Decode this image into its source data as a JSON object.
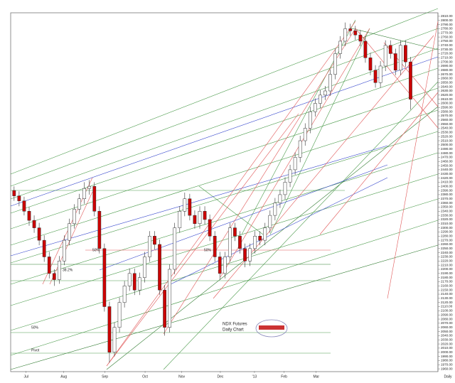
{
  "chart_data": {
    "type": "candlestick",
    "title": "NDX  Futures",
    "subtitle": "Daily Chart",
    "x": [
      0,
      1,
      2,
      3,
      4,
      5,
      6,
      7,
      8,
      9,
      10,
      11,
      12,
      13,
      14,
      15,
      16,
      17,
      18,
      19,
      20,
      21,
      22,
      23,
      24,
      25,
      26,
      27,
      28,
      29,
      30,
      31,
      32,
      33,
      34,
      35,
      36,
      37,
      38,
      39,
      40,
      41,
      42,
      43,
      44,
      45,
      46,
      47,
      48,
      49,
      50,
      51,
      52,
      53,
      54,
      55,
      56,
      57,
      58,
      59,
      60,
      61,
      62,
      63,
      64,
      65,
      66,
      67,
      68,
      69,
      70,
      71,
      72,
      73,
      74,
      75,
      76,
      77,
      78,
      79
    ],
    "open": [
      2390,
      2377,
      2365,
      2340,
      2318,
      2300,
      2270,
      2230,
      2190,
      2175,
      2220,
      2270,
      2310,
      2345,
      2370,
      2395,
      2400,
      2340,
      2250,
      2110,
      2000,
      2060,
      2120,
      2160,
      2190,
      2150,
      2180,
      2230,
      2280,
      2260,
      2150,
      2060,
      2200,
      2300,
      2340,
      2370,
      2330,
      2310,
      2340,
      2320,
      2280,
      2230,
      2190,
      2230,
      2300,
      2280,
      2250,
      2220,
      2250,
      2280,
      2270,
      2300,
      2330,
      2360,
      2380,
      2410,
      2440,
      2470,
      2510,
      2540,
      2580,
      2600,
      2620,
      2630,
      2670,
      2720,
      2750,
      2780,
      2775,
      2765,
      2750,
      2710,
      2680,
      2650,
      2690,
      2740,
      2720,
      2680,
      2740,
      2700
    ],
    "high": [
      2400,
      2388,
      2375,
      2350,
      2330,
      2312,
      2282,
      2242,
      2200,
      2232,
      2282,
      2322,
      2357,
      2382,
      2410,
      2415,
      2410,
      2352,
      2262,
      2122,
      2072,
      2132,
      2172,
      2202,
      2202,
      2192,
      2242,
      2292,
      2292,
      2272,
      2162,
      2212,
      2312,
      2352,
      2385,
      2382,
      2342,
      2352,
      2352,
      2332,
      2292,
      2242,
      2242,
      2312,
      2312,
      2292,
      2262,
      2262,
      2292,
      2292,
      2312,
      2342,
      2372,
      2392,
      2422,
      2452,
      2482,
      2522,
      2552,
      2592,
      2612,
      2632,
      2642,
      2682,
      2732,
      2762,
      2795,
      2792,
      2787,
      2777,
      2762,
      2722,
      2692,
      2702,
      2752,
      2752,
      2732,
      2752,
      2752,
      2712
    ],
    "low": [
      2365,
      2352,
      2330,
      2305,
      2288,
      2258,
      2218,
      2178,
      2160,
      2165,
      2210,
      2258,
      2298,
      2333,
      2358,
      2380,
      2328,
      2238,
      2098,
      1975,
      1990,
      2048,
      2108,
      2148,
      2138,
      2138,
      2168,
      2218,
      2248,
      2138,
      2040,
      2048,
      2188,
      2288,
      2328,
      2318,
      2298,
      2298,
      2308,
      2268,
      2218,
      2175,
      2178,
      2218,
      2268,
      2238,
      2205,
      2208,
      2238,
      2258,
      2258,
      2288,
      2318,
      2348,
      2368,
      2398,
      2428,
      2458,
      2498,
      2528,
      2568,
      2588,
      2608,
      2618,
      2658,
      2708,
      2738,
      2763,
      2753,
      2738,
      2698,
      2668,
      2638,
      2638,
      2678,
      2708,
      2668,
      2668,
      2688,
      2585
    ],
    "close": [
      2377,
      2365,
      2340,
      2318,
      2300,
      2270,
      2230,
      2190,
      2175,
      2220,
      2270,
      2310,
      2345,
      2370,
      2395,
      2400,
      2340,
      2250,
      2110,
      2000,
      2060,
      2120,
      2160,
      2190,
      2150,
      2180,
      2230,
      2280,
      2260,
      2150,
      2060,
      2200,
      2300,
      2340,
      2370,
      2330,
      2310,
      2340,
      2320,
      2280,
      2230,
      2190,
      2230,
      2300,
      2280,
      2250,
      2220,
      2250,
      2280,
      2270,
      2300,
      2330,
      2360,
      2380,
      2410,
      2440,
      2470,
      2510,
      2540,
      2580,
      2600,
      2620,
      2630,
      2670,
      2720,
      2750,
      2780,
      2775,
      2765,
      2750,
      2710,
      2680,
      2650,
      2690,
      2740,
      2720,
      2680,
      2740,
      2700,
      2610
    ],
    "up_color": "#ffffff",
    "down_color": "#cc0000",
    "xlim": [
      -0.4,
      84.6
    ],
    "xticks": [
      {
        "value": 2.4,
        "label": "Jul"
      },
      {
        "value": 9.9,
        "label": "Aug"
      },
      {
        "value": 18.1,
        "label": "Sep"
      },
      {
        "value": 26.1,
        "label": "Oct"
      },
      {
        "value": 33.4,
        "label": "Nov"
      },
      {
        "value": 41.1,
        "label": "Dec"
      },
      {
        "value": 47.9,
        "label": "'13"
      },
      {
        "value": 53.8,
        "label": "Feb"
      },
      {
        "value": 60.2,
        "label": "Mar"
      }
    ],
    "x_axis_label": "Daily",
    "ylim": [
      1955,
      2815
    ],
    "yticks": [
      {
        "value": 1960,
        "label": "1960.00"
      },
      {
        "value": 1970,
        "label": "1970.00"
      },
      {
        "value": 1980,
        "label": "1980.00"
      },
      {
        "value": 1990,
        "label": "1990.00"
      },
      {
        "value": 2000,
        "label": "2000.00"
      },
      {
        "value": 2010,
        "label": "2010.00"
      },
      {
        "value": 2020,
        "label": "2020.00"
      },
      {
        "value": 2030,
        "label": "2030.00"
      },
      {
        "value": 2040,
        "label": "2040.00"
      },
      {
        "value": 2050,
        "label": "2050.00"
      },
      {
        "value": 2060,
        "label": "2060.00"
      },
      {
        "value": 2070,
        "label": "2070.00"
      },
      {
        "value": 2080,
        "label": "2080.00"
      },
      {
        "value": 2090,
        "label": "2090.00"
      },
      {
        "value": 2100,
        "label": "2100.00"
      },
      {
        "value": 2110,
        "label": "2110.00"
      },
      {
        "value": 2120,
        "label": "2120.00"
      },
      {
        "value": 2130,
        "label": "2130.00"
      },
      {
        "value": 2140,
        "label": "2140.00"
      },
      {
        "value": 2150,
        "label": "2150.00"
      },
      {
        "value": 2160,
        "label": "2160.00"
      },
      {
        "value": 2170,
        "label": "2170.00"
      },
      {
        "value": 2180,
        "label": "2180.00"
      },
      {
        "value": 2190,
        "label": "2190.00"
      },
      {
        "value": 2200,
        "label": "2200.00"
      },
      {
        "value": 2210,
        "label": "2210.00"
      },
      {
        "value": 2220,
        "label": "2220.00"
      },
      {
        "value": 2230,
        "label": "2230.00"
      },
      {
        "value": 2240,
        "label": "2240.00"
      },
      {
        "value": 2250,
        "label": "2250.00"
      },
      {
        "value": 2260,
        "label": "2260.00"
      },
      {
        "value": 2270,
        "label": "2270.00"
      },
      {
        "value": 2280,
        "label": "2280.00"
      },
      {
        "value": 2290,
        "label": "2290.00"
      },
      {
        "value": 2300,
        "label": "2300.00"
      },
      {
        "value": 2310,
        "label": "2310.00"
      },
      {
        "value": 2320,
        "label": "2320.00"
      },
      {
        "value": 2330,
        "label": "2330.00"
      },
      {
        "value": 2340,
        "label": "2340.00"
      },
      {
        "value": 2350,
        "label": "2350.00"
      },
      {
        "value": 2360,
        "label": "2360.00"
      },
      {
        "value": 2370,
        "label": "2370.00"
      },
      {
        "value": 2380,
        "label": "2380.00"
      },
      {
        "value": 2390,
        "label": "2390.00"
      },
      {
        "value": 2400,
        "label": "2400.00"
      },
      {
        "value": 2410,
        "label": "2410.00"
      },
      {
        "value": 2420,
        "label": "2420.00"
      },
      {
        "value": 2430,
        "label": "2430.00"
      },
      {
        "value": 2440,
        "label": "2440.00"
      },
      {
        "value": 2450,
        "label": "2450.00"
      },
      {
        "value": 2460,
        "label": "2460.00"
      },
      {
        "value": 2470,
        "label": "2470.00"
      },
      {
        "value": 2480,
        "label": "2480.00"
      },
      {
        "value": 2490,
        "label": "2490.00"
      },
      {
        "value": 2500,
        "label": "2500.00"
      },
      {
        "value": 2510,
        "label": "2510.00"
      },
      {
        "value": 2520,
        "label": "2520.00"
      },
      {
        "value": 2530,
        "label": "2530.00"
      },
      {
        "value": 2540,
        "label": "2540.00"
      },
      {
        "value": 2550,
        "label": "2550.00"
      },
      {
        "value": 2560,
        "label": "2560.00"
      },
      {
        "value": 2570,
        "label": "2570.00"
      },
      {
        "value": 2580,
        "label": "2580.00"
      },
      {
        "value": 2590,
        "label": "2590.00"
      },
      {
        "value": 2600,
        "label": "2600.00"
      },
      {
        "value": 2610,
        "label": "2610.00"
      },
      {
        "value": 2620,
        "label": "2620.00"
      },
      {
        "value": 2630,
        "label": "2630.00"
      },
      {
        "value": 2640,
        "label": "2640.00"
      },
      {
        "value": 2650,
        "label": "2650.00"
      },
      {
        "value": 2660,
        "label": "2660.00"
      },
      {
        "value": 2670,
        "label": "2670.00"
      },
      {
        "value": 2680,
        "label": "2680.00"
      },
      {
        "value": 2690,
        "label": "2690.00"
      },
      {
        "value": 2700,
        "label": "2700.00"
      },
      {
        "value": 2710,
        "label": "2710.00"
      },
      {
        "value": 2720,
        "label": "2720.00"
      },
      {
        "value": 2730,
        "label": "2730.00"
      },
      {
        "value": 2740,
        "label": "2740.00"
      },
      {
        "value": 2750,
        "label": "2750.00"
      },
      {
        "value": 2760,
        "label": "2760.00"
      },
      {
        "value": 2770,
        "label": "2770.00"
      },
      {
        "value": 2780,
        "label": "2780.00"
      },
      {
        "value": 2790,
        "label": "2790.00"
      },
      {
        "value": 2800,
        "label": "2800.00"
      },
      {
        "value": 2810,
        "label": "2810.00"
      }
    ],
    "annotations": [
      "38.2%",
      "50%",
      "Pivot",
      "50%",
      "50%"
    ]
  }
}
